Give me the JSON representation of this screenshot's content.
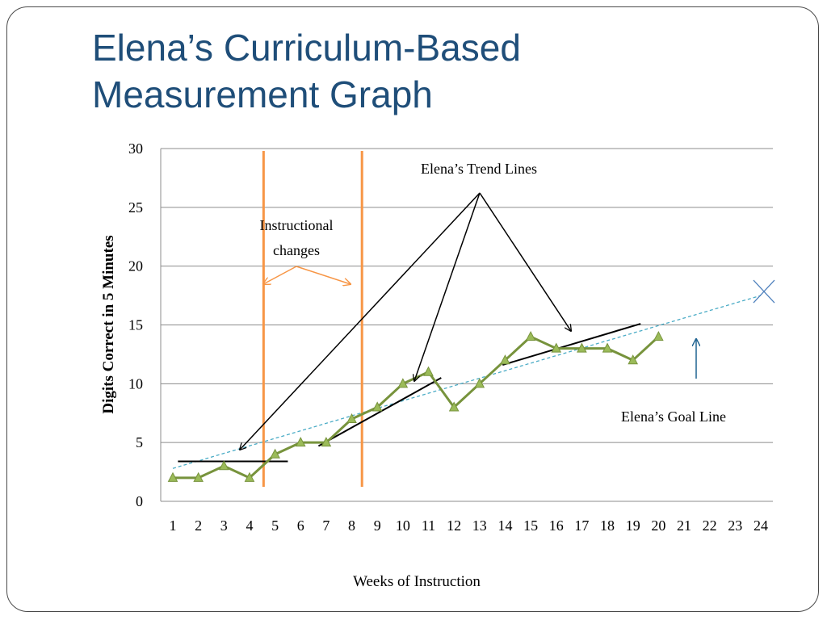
{
  "slide": {
    "title_line1": "Elena’s Curriculum-Based",
    "title_line2": "Measurement Graph"
  },
  "colors": {
    "title": "#1f4e79",
    "data_line": "#77933c",
    "marker_fill": "#9bbb59",
    "instructional_change_line": "#f79646",
    "goal_line": "#4bacc6",
    "goal_arrow": "#1f6391",
    "trend_line": "#000000"
  },
  "chart_data": {
    "type": "line",
    "xlabel": "Weeks of Instruction",
    "ylabel": "Digits Correct in 5 Minutes",
    "xlim": [
      1,
      24
    ],
    "ylim": [
      0,
      30
    ],
    "categories": [
      "1",
      "2",
      "3",
      "4",
      "5",
      "6",
      "7",
      "8",
      "9",
      "10",
      "11",
      "12",
      "13",
      "14",
      "15",
      "16",
      "17",
      "18",
      "19",
      "20",
      "21",
      "22",
      "23",
      "24"
    ],
    "yticks": [
      0,
      5,
      10,
      15,
      20,
      25,
      30
    ],
    "grid": "horizontal",
    "series": [
      {
        "x": [
          1,
          2,
          3,
          4,
          5,
          6,
          7,
          8,
          9,
          10,
          11,
          12,
          13,
          14,
          15,
          16,
          17,
          18,
          19,
          20
        ],
        "values": [
          2,
          2,
          3,
          2,
          4,
          5,
          5,
          7,
          8,
          10,
          11,
          8,
          10,
          12,
          14,
          13,
          13,
          13,
          12,
          14
        ]
      }
    ],
    "goal_line": {
      "from": [
        1,
        2.8
      ],
      "to": [
        24,
        17.5
      ]
    },
    "instructional_changes_at": [
      4.55,
      8.4
    ],
    "trend_lines": [
      {
        "from": [
          1.2,
          3.4
        ],
        "to": [
          5.5,
          3.4
        ]
      },
      {
        "from": [
          6.7,
          4.7
        ],
        "to": [
          11.5,
          10.5
        ]
      },
      {
        "from": [
          13.9,
          11.6
        ],
        "to": [
          19.3,
          15.1
        ]
      }
    ],
    "annotations": {
      "trend_lines_label": "Elena’s Trend Lines",
      "instructional_changes_line1": "Instructional",
      "instructional_changes_line2": "changes",
      "goal_line_label": "Elena’s Goal Line"
    }
  }
}
